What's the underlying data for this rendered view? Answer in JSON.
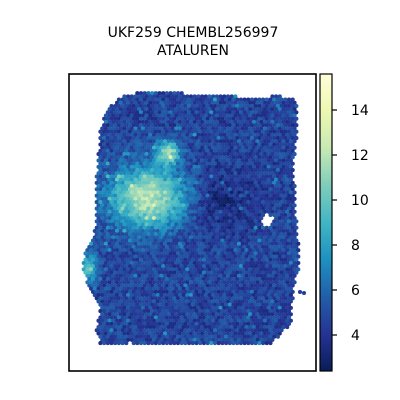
{
  "chart_data": {
    "type": "heatmap",
    "title": "UKF259 CHEMBL256997",
    "subtitle": "ATALUREN",
    "xlabel": "",
    "ylabel": "",
    "colormap": "YlGnBu",
    "colorbar": {
      "range": [
        2.4,
        15.6
      ],
      "ticks": [
        4,
        6,
        8,
        10,
        12,
        14
      ],
      "tick_labels": [
        "4",
        "6",
        "8",
        "10",
        "12",
        "14"
      ]
    },
    "colors": {
      "low": "#081d58",
      "mid": "#1d91c0",
      "high": "#ffffd9"
    },
    "notes": []
  }
}
